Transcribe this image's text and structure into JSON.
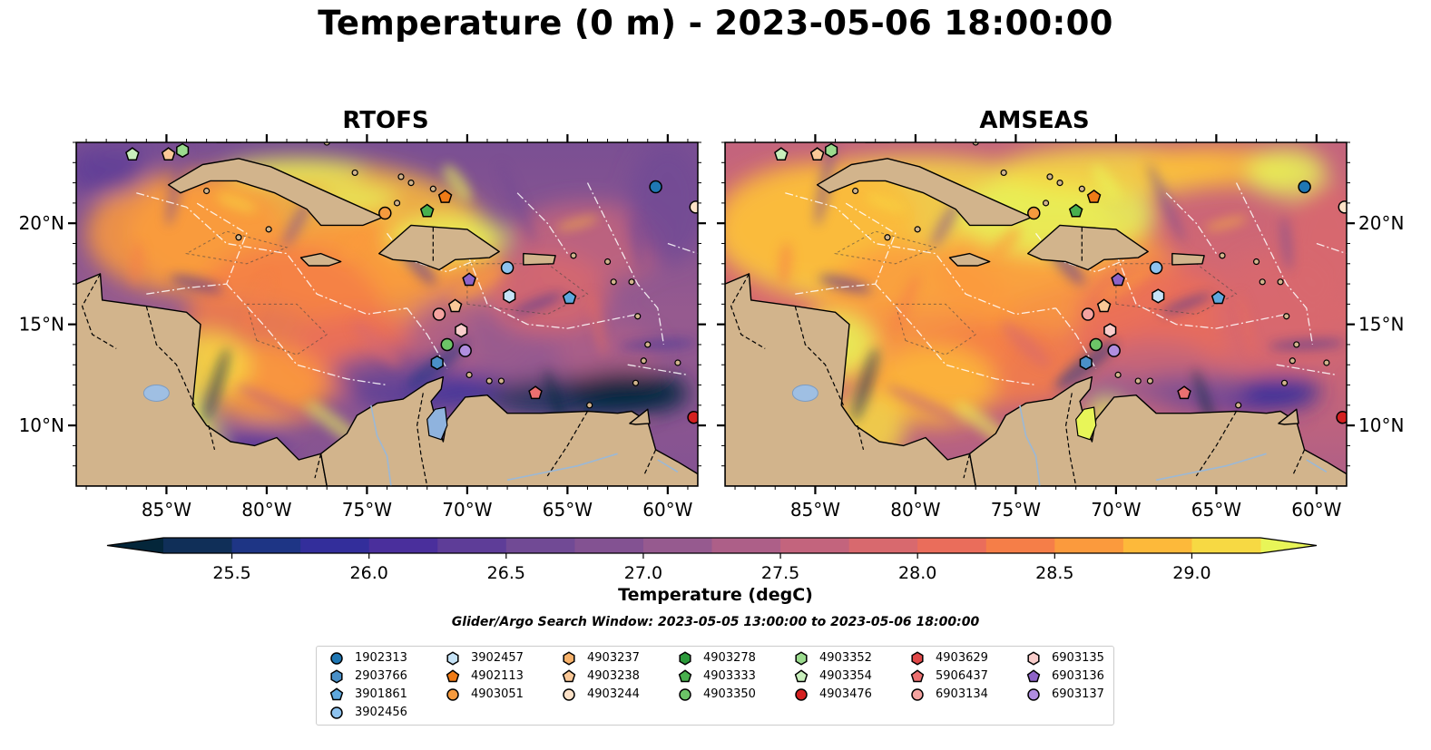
{
  "title": "Temperature (0 m) - 2023-05-06 18:00:00",
  "panels": [
    {
      "title": "RTOFS",
      "variant": "rtofs"
    },
    {
      "title": "AMSEAS",
      "variant": "amseas"
    }
  ],
  "axes": {
    "lon_ticks": [
      "85°W",
      "80°W",
      "75°W",
      "70°W",
      "65°W",
      "60°W"
    ],
    "lat_ticks": [
      "20°N",
      "15°N",
      "10°N"
    ],
    "lon_range": [
      -89.5,
      -58.5
    ],
    "lat_range": [
      7,
      24
    ]
  },
  "colorbar": {
    "label": "Temperature (degC)",
    "ticks": [
      "25.5",
      "26.0",
      "26.5",
      "27.0",
      "27.5",
      "28.0",
      "28.5",
      "29.0"
    ],
    "range": [
      25.25,
      29.25
    ],
    "extend": "both",
    "colors": [
      "#04263a",
      "#102f58",
      "#1e3585",
      "#332e9b",
      "#4a2f9c",
      "#5e3d98",
      "#714a95",
      "#835292",
      "#965a8f",
      "#ad5f88",
      "#c3647d",
      "#d8696e",
      "#ea6d5b",
      "#f57e48",
      "#fb9a3d",
      "#fdb93a",
      "#f7d943",
      "#e8f558"
    ]
  },
  "search_window": "Glider/Argo Search Window: 2023-05-05 13:00:00 to 2023-05-06 18:00:00",
  "legend": [
    {
      "id": "1902313",
      "marker": "circle",
      "color": "#1f77b4"
    },
    {
      "id": "2903766",
      "marker": "hexagon",
      "color": "#4a90c8"
    },
    {
      "id": "3901861",
      "marker": "pentagon",
      "color": "#5ea8de"
    },
    {
      "id": "3902456",
      "marker": "circle",
      "color": "#8ec3ef"
    },
    {
      "id": "3902457",
      "marker": "hexagon",
      "color": "#c6e3f7"
    },
    {
      "id": "4902113",
      "marker": "pentagon",
      "color": "#f07b16"
    },
    {
      "id": "4903051",
      "marker": "circle",
      "color": "#f59a3e"
    },
    {
      "id": "4903237",
      "marker": "hexagon",
      "color": "#f8b26b"
    },
    {
      "id": "4903238",
      "marker": "pentagon",
      "color": "#fbc897"
    },
    {
      "id": "4903244",
      "marker": "circle",
      "color": "#fde2c8"
    },
    {
      "id": "4903278",
      "marker": "hexagon",
      "color": "#2b9a3a"
    },
    {
      "id": "4903333",
      "marker": "pentagon",
      "color": "#49b04e"
    },
    {
      "id": "4903350",
      "marker": "circle",
      "color": "#6cc467"
    },
    {
      "id": "4903352",
      "marker": "hexagon",
      "color": "#9bdb8e"
    },
    {
      "id": "4903354",
      "marker": "pentagon",
      "color": "#c8efbc"
    },
    {
      "id": "4903476",
      "marker": "circle",
      "color": "#d42020"
    },
    {
      "id": "4903629",
      "marker": "hexagon",
      "color": "#e04848"
    },
    {
      "id": "5906437",
      "marker": "pentagon",
      "color": "#ec7070"
    },
    {
      "id": "6903134",
      "marker": "circle",
      "color": "#f4a3a0"
    },
    {
      "id": "6903135",
      "marker": "hexagon",
      "color": "#f9cdcb"
    },
    {
      "id": "6903136",
      "marker": "pentagon",
      "color": "#8e63c7"
    },
    {
      "id": "6903137",
      "marker": "circle",
      "color": "#b08ee0"
    }
  ],
  "platforms": [
    {
      "id": "1902313",
      "lon": -60.6,
      "lat": 21.8
    },
    {
      "id": "4903244",
      "lon": -58.6,
      "lat": 20.8
    },
    {
      "id": "4903051",
      "lon": -74.1,
      "lat": 20.5
    },
    {
      "id": "4903333",
      "lon": -72.0,
      "lat": 20.6
    },
    {
      "id": "4902113",
      "lon": -71.1,
      "lat": 21.3
    },
    {
      "id": "4903354",
      "lon": -86.7,
      "lat": 23.4
    },
    {
      "id": "4903238",
      "lon": -84.9,
      "lat": 23.4
    },
    {
      "id": "4903352",
      "lon": -84.2,
      "lat": 23.6
    },
    {
      "id": "3902456",
      "lon": -68.0,
      "lat": 17.8
    },
    {
      "id": "6903136",
      "lon": -69.9,
      "lat": 17.2
    },
    {
      "id": "3902457",
      "lon": -67.9,
      "lat": 16.4
    },
    {
      "id": "3901861",
      "lon": -64.9,
      "lat": 16.3
    },
    {
      "id": "4903238",
      "lon": -70.6,
      "lat": 15.9
    },
    {
      "id": "6903134",
      "lon": -71.4,
      "lat": 15.5
    },
    {
      "id": "6903135",
      "lon": -70.3,
      "lat": 14.7
    },
    {
      "id": "4903350",
      "lon": -71.0,
      "lat": 14.0
    },
    {
      "id": "6903137",
      "lon": -70.1,
      "lat": 13.7
    },
    {
      "id": "2903766",
      "lon": -71.5,
      "lat": 13.1
    },
    {
      "id": "5906437",
      "lon": -66.6,
      "lat": 11.6
    },
    {
      "id": "4903476",
      "lon": -58.7,
      "lat": 10.4
    }
  ]
}
